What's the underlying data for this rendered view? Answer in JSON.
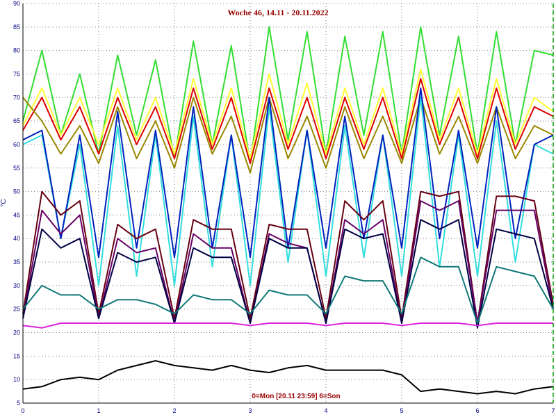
{
  "chart_data": {
    "type": "line",
    "title": "Woche 46, 14.11 - 20.11.2022",
    "ylabel": "°C",
    "xlabel": "",
    "footer_note": "0=Mon [20.11 23:59] 6=Son",
    "xlim": [
      0,
      7
    ],
    "ylim": [
      5,
      90
    ],
    "x_ticks": [
      0,
      1,
      2,
      3,
      4,
      5,
      6,
      7
    ],
    "y_ticks": [
      5,
      10,
      15,
      20,
      25,
      30,
      35,
      40,
      45,
      50,
      55,
      60,
      65,
      70,
      75,
      80,
      85,
      90
    ],
    "grid": true,
    "colors": {
      "grid": "#808080",
      "axis_text": "#000080",
      "title": "#990000",
      "end_marker": "#00a000"
    },
    "x": [
      0,
      0.25,
      0.5,
      0.75,
      1,
      1.25,
      1.5,
      1.75,
      2,
      2.25,
      2.5,
      2.75,
      3,
      3.25,
      3.5,
      3.75,
      4,
      4.25,
      4.5,
      4.75,
      5,
      5.25,
      5.5,
      5.75,
      6,
      6.25,
      6.5,
      6.75,
      7
    ],
    "series": [
      {
        "color": "#33dd33",
        "values": [
          65,
          80,
          62,
          75,
          58,
          79,
          62,
          78,
          57,
          82,
          60,
          81,
          56,
          85,
          61,
          84,
          58,
          83,
          62,
          84,
          58,
          85,
          62,
          83,
          58,
          84,
          60,
          80,
          79
        ]
      },
      {
        "color": "#ffff33",
        "values": [
          64,
          72,
          62,
          70,
          60,
          72,
          61,
          70,
          58,
          74,
          60,
          72,
          57,
          75,
          60,
          73,
          58,
          72,
          60,
          72,
          58,
          76,
          61,
          72,
          58,
          74,
          60,
          70,
          67
        ]
      },
      {
        "color": "#dd0000",
        "values": [
          63,
          70,
          61,
          68,
          58,
          70,
          60,
          68,
          57,
          72,
          59,
          70,
          56,
          72,
          59,
          70,
          57,
          70,
          59,
          70,
          57,
          74,
          60,
          70,
          57,
          72,
          59,
          68,
          66
        ]
      },
      {
        "color": "#998800",
        "values": [
          70,
          65,
          58,
          64,
          56,
          68,
          57,
          65,
          55,
          70,
          58,
          66,
          54,
          70,
          57,
          66,
          55,
          68,
          57,
          66,
          56,
          70,
          58,
          66,
          56,
          68,
          57,
          64,
          62
        ]
      },
      {
        "color": "#33dddd",
        "values": [
          60,
          62,
          40,
          60,
          30,
          64,
          32,
          62,
          30,
          66,
          34,
          62,
          30,
          68,
          35,
          63,
          32,
          64,
          36,
          62,
          32,
          70,
          34,
          62,
          32,
          65,
          35,
          60,
          58
        ]
      },
      {
        "color": "#0022bb",
        "values": [
          61,
          63,
          40,
          62,
          36,
          67,
          38,
          63,
          36,
          68,
          38,
          62,
          36,
          70,
          38,
          63,
          38,
          66,
          40,
          62,
          38,
          72,
          40,
          63,
          38,
          68,
          40,
          60,
          62
        ]
      },
      {
        "color": "#660011",
        "values": [
          24,
          50,
          45,
          48,
          24,
          43,
          40,
          42,
          23,
          44,
          42,
          42,
          23,
          43,
          42,
          42,
          23,
          48,
          44,
          48,
          23,
          50,
          49,
          50,
          22,
          49,
          49,
          48,
          26
        ]
      },
      {
        "color": "#660066",
        "values": [
          23,
          46,
          41,
          45,
          23,
          40,
          37,
          38,
          22,
          41,
          38,
          38,
          22,
          41,
          39,
          38,
          22,
          44,
          41,
          44,
          22,
          48,
          46,
          48,
          22,
          46,
          46,
          46,
          25
        ]
      },
      {
        "color": "#000044",
        "values": [
          23,
          42,
          38,
          40,
          23,
          37,
          35,
          36,
          22,
          38,
          36,
          36,
          22,
          40,
          38,
          38,
          22,
          42,
          40,
          41,
          22,
          44,
          42,
          44,
          21,
          42,
          41,
          40,
          25
        ]
      },
      {
        "color": "#117777",
        "values": [
          25,
          30,
          28,
          28,
          25,
          27,
          27,
          26,
          24,
          28,
          27,
          27,
          24,
          29,
          28,
          28,
          24,
          32,
          31,
          31,
          24,
          36,
          34,
          34,
          22,
          34,
          33,
          32,
          25
        ]
      },
      {
        "color": "#dd22dd",
        "values": [
          21.5,
          21,
          22,
          22,
          22,
          22,
          22,
          22,
          22,
          22,
          22,
          22,
          21.5,
          22,
          22,
          22,
          21.5,
          22,
          22,
          22,
          21.5,
          22,
          22,
          22,
          21.5,
          22,
          22,
          22,
          22
        ]
      },
      {
        "color": "#000000",
        "values": [
          8,
          8.5,
          10,
          10.5,
          10,
          12,
          13,
          14,
          13,
          12.5,
          12,
          13,
          12,
          11.5,
          12.5,
          13,
          12,
          12,
          12,
          12,
          11,
          7.5,
          8,
          7.5,
          7,
          7.5,
          7,
          8,
          8.5
        ]
      }
    ]
  }
}
